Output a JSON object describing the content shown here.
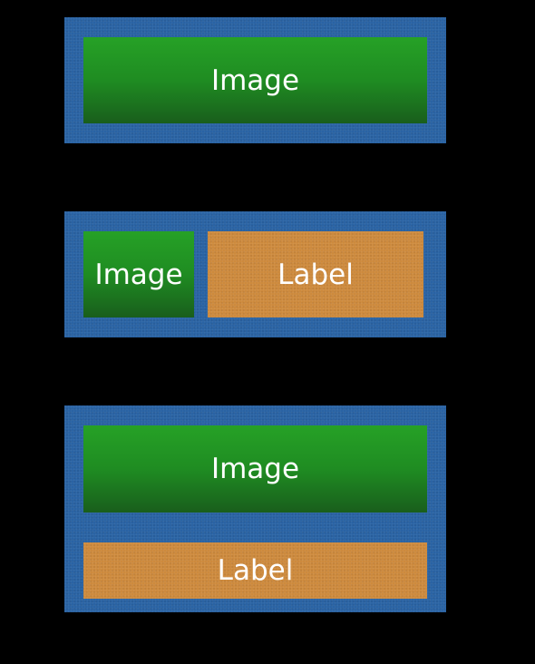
{
  "layouts": [
    {
      "image_label": "Image"
    },
    {
      "image_label": "Image",
      "label_text": "Label"
    },
    {
      "image_label": "Image",
      "label_text": "Label"
    }
  ]
}
